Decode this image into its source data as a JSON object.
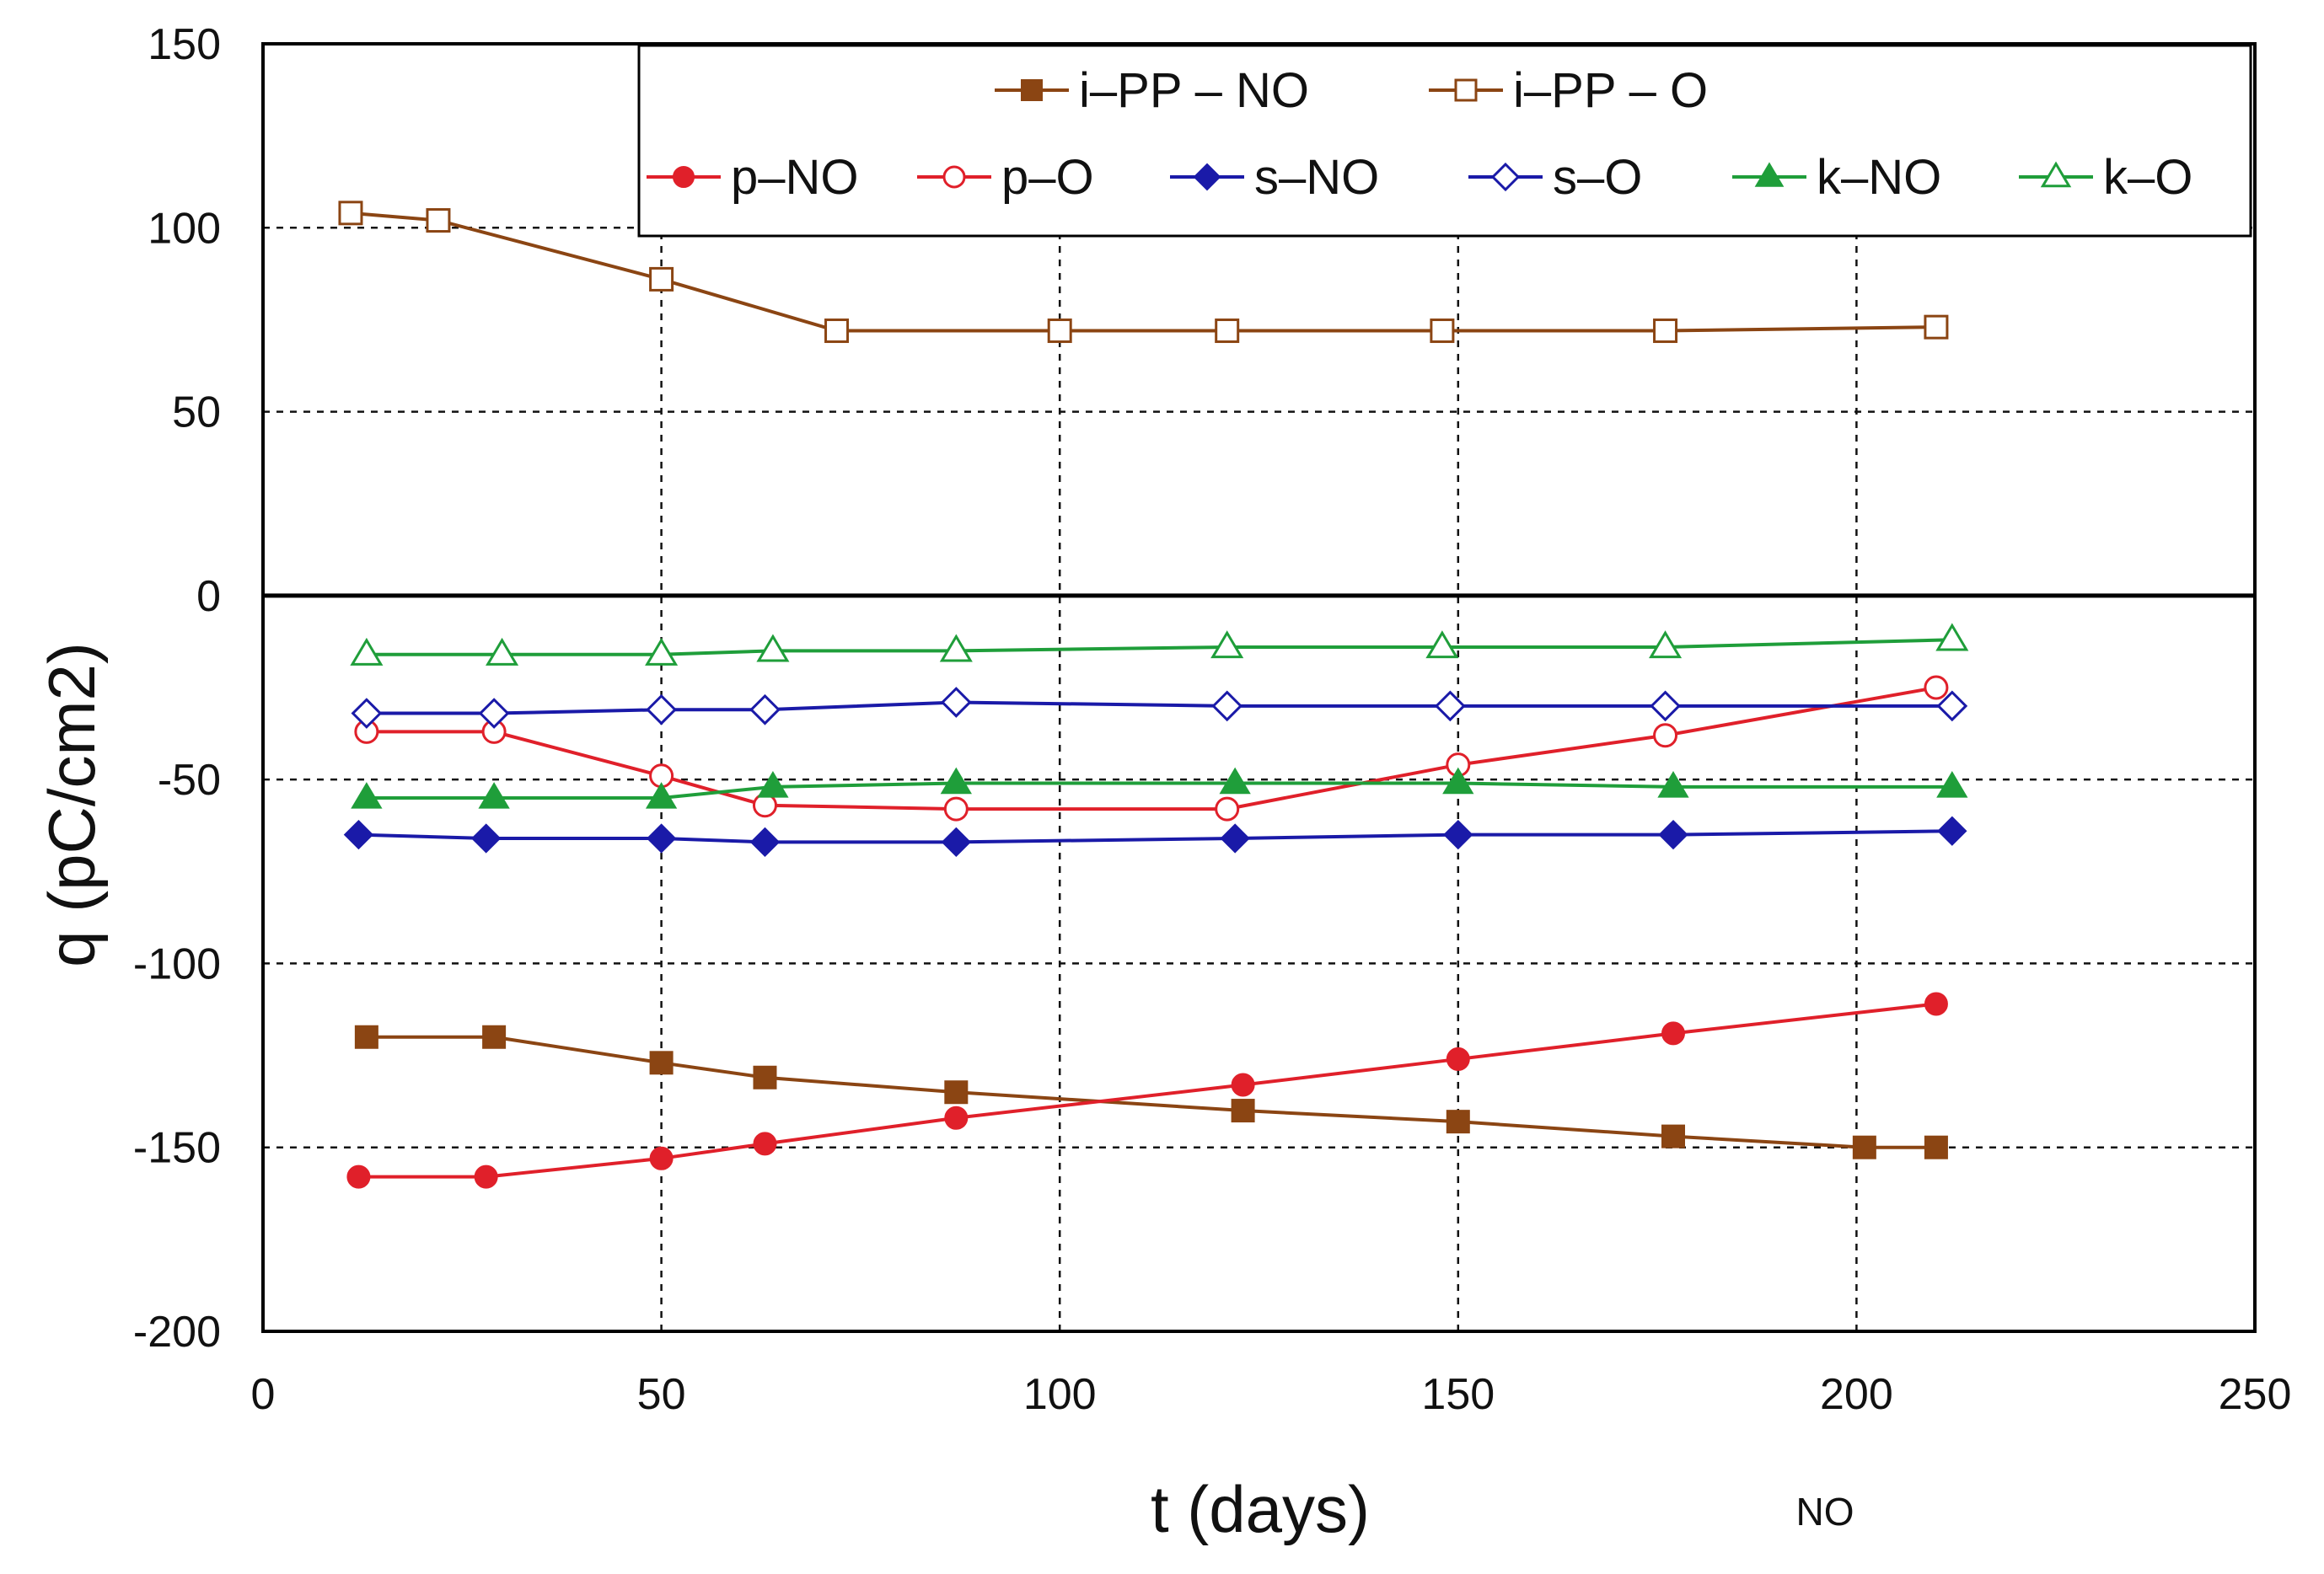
{
  "chart_data": {
    "type": "line",
    "title": "",
    "xlabel": "t (days)",
    "ylabel": "q (pC/cm2)",
    "xlim": [
      0,
      250
    ],
    "ylim": [
      -200,
      150
    ],
    "xticks": [
      0,
      50,
      100,
      150,
      200,
      250
    ],
    "yticks": [
      -200,
      -150,
      -100,
      -50,
      0,
      50,
      100,
      150
    ],
    "grid": "dashed",
    "zero_line": true,
    "legend_position": "top-right",
    "note": "NO",
    "series": [
      {
        "name": "i–PP – NO",
        "color": "#8b4513",
        "marker": "square",
        "filled": true,
        "x": [
          13,
          29,
          50,
          63,
          87,
          123,
          150,
          177,
          201,
          210
        ],
        "y": [
          -120,
          -120,
          -127,
          -131,
          -135,
          -140,
          -143,
          -147,
          -150,
          -150
        ]
      },
      {
        "name": "i–PP – O",
        "color": "#8b4513",
        "marker": "square",
        "filled": false,
        "x": [
          11,
          22,
          50,
          72,
          100,
          121,
          148,
          176,
          210
        ],
        "y": [
          104,
          102,
          86,
          72,
          72,
          72,
          72,
          72,
          73
        ]
      },
      {
        "name": "p–NO",
        "color": "#e0202a",
        "marker": "circle",
        "filled": true,
        "x": [
          12,
          28,
          50,
          63,
          87,
          123,
          150,
          177,
          210
        ],
        "y": [
          -158,
          -158,
          -153,
          -149,
          -142,
          -133,
          -126,
          -119,
          -111
        ]
      },
      {
        "name": "p–O",
        "color": "#e0202a",
        "marker": "circle",
        "filled": false,
        "x": [
          13,
          29,
          50,
          63,
          87,
          121,
          150,
          176,
          210
        ],
        "y": [
          -37,
          -37,
          -49,
          -57,
          -58,
          -58,
          -46,
          -38,
          -25
        ]
      },
      {
        "name": "s–NO",
        "color": "#1a1aa8",
        "marker": "diamond",
        "filled": true,
        "x": [
          12,
          28,
          50,
          63,
          87,
          122,
          150,
          177,
          212
        ],
        "y": [
          -65,
          -66,
          -66,
          -67,
          -67,
          -66,
          -65,
          -65,
          -64
        ]
      },
      {
        "name": "s–O",
        "color": "#1a1aa8",
        "marker": "diamond",
        "filled": false,
        "x": [
          13,
          29,
          50,
          63,
          87,
          121,
          149,
          176,
          212
        ],
        "y": [
          -32,
          -32,
          -31,
          -31,
          -29,
          -30,
          -30,
          -30,
          -30
        ]
      },
      {
        "name": "k–NO",
        "color": "#1f9e3a",
        "marker": "triangle",
        "filled": true,
        "x": [
          13,
          29,
          50,
          64,
          87,
          122,
          150,
          177,
          212
        ],
        "y": [
          -55,
          -55,
          -55,
          -52,
          -51,
          -51,
          -51,
          -52,
          -52
        ]
      },
      {
        "name": "k–O",
        "color": "#1f9e3a",
        "marker": "triangle",
        "filled": false,
        "x": [
          13,
          30,
          50,
          64,
          87,
          121,
          148,
          176,
          212
        ],
        "y": [
          -16,
          -16,
          -16,
          -15,
          -15,
          -14,
          -14,
          -14,
          -12
        ]
      }
    ]
  }
}
